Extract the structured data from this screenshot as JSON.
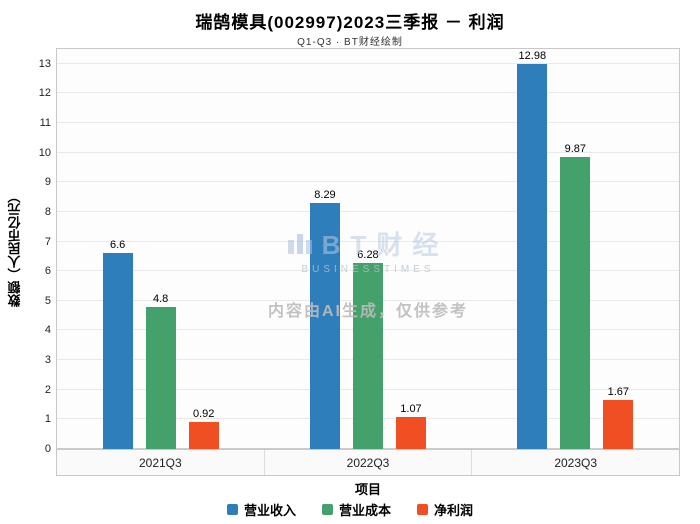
{
  "header": {
    "title": "瑞鹄模具(002997)2023三季报 － 利润",
    "subtitle": "Q1-Q3 · BT财经绘制"
  },
  "watermark": {
    "brand": "BT财经",
    "brand_sub": "BUSINESSTIMES",
    "notice": "内容由AI生成，仅供参考"
  },
  "chart_data": {
    "type": "bar",
    "title": "瑞鹄模具(002997)2023三季报 － 利润",
    "subtitle": "Q1-Q3 · BT财经绘制",
    "categories": [
      "2021Q3",
      "2022Q3",
      "2023Q3"
    ],
    "series": [
      {
        "name": "营业收入",
        "color": "#2E7EBB",
        "values": [
          6.6,
          8.29,
          12.98
        ]
      },
      {
        "name": "营业成本",
        "color": "#45A16B",
        "values": [
          4.8,
          6.28,
          9.87
        ]
      },
      {
        "name": "净利润",
        "color": "#F04E23",
        "values": [
          0.92,
          1.07,
          1.67
        ]
      }
    ],
    "xlabel": "项目",
    "ylabel": "数额（人民币亿元）",
    "ylim": [
      0,
      13.5
    ],
    "yticks": [
      0,
      1,
      2,
      3,
      4,
      5,
      6,
      7,
      8,
      9,
      10,
      11,
      12,
      13
    ],
    "grid": true,
    "legend_position": "bottom"
  }
}
